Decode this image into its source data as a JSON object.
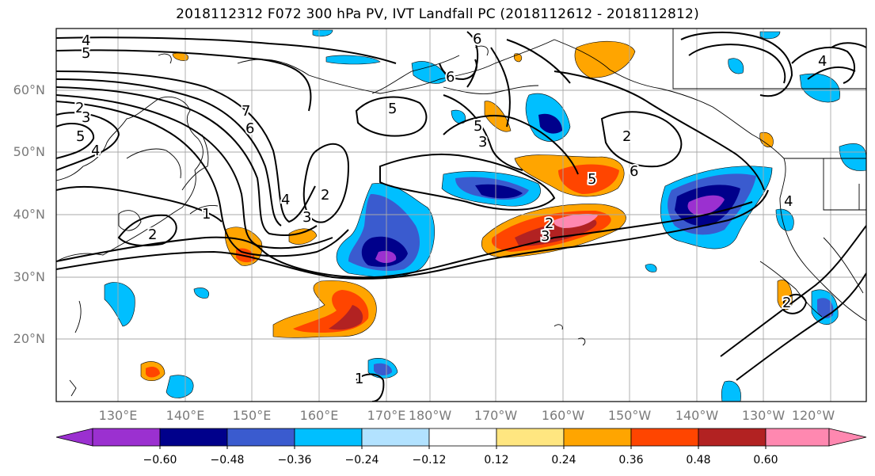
{
  "title": "2018112312 F072 300 hPa PV, IVT Landfall PC (2018112612 - 2018112812)",
  "lat_labels": [
    "60°N",
    "50°N",
    "40°N",
    "30°N",
    "20°N"
  ],
  "lon_labels": [
    "130°E",
    "140°E",
    "150°E",
    "160°E",
    "170°E",
    "180°W",
    "170°W",
    "160°W",
    "150°W",
    "140°W",
    "130°W",
    "120°W"
  ],
  "colorbar": {
    "ticks": [
      "−0.60",
      "−0.48",
      "−0.36",
      "−0.24",
      "−0.12",
      "0.12",
      "0.24",
      "0.36",
      "0.48",
      "0.60"
    ],
    "colors": [
      "#9b30d0",
      "#00008b",
      "#3a5bcf",
      "#00bfff",
      "#b2e2ff",
      "#ffffff",
      "#ffe680",
      "#ffa500",
      "#ff4500",
      "#b22222",
      "#ff88b0"
    ]
  },
  "contour_labels": [
    "4",
    "5",
    "2",
    "3",
    "5",
    "4",
    "6",
    "7",
    "5",
    "4",
    "3",
    "2",
    "1",
    "2",
    "6",
    "6",
    "5",
    "3",
    "2",
    "6",
    "5",
    "3",
    "2",
    "4",
    "4",
    "2",
    "1"
  ]
}
